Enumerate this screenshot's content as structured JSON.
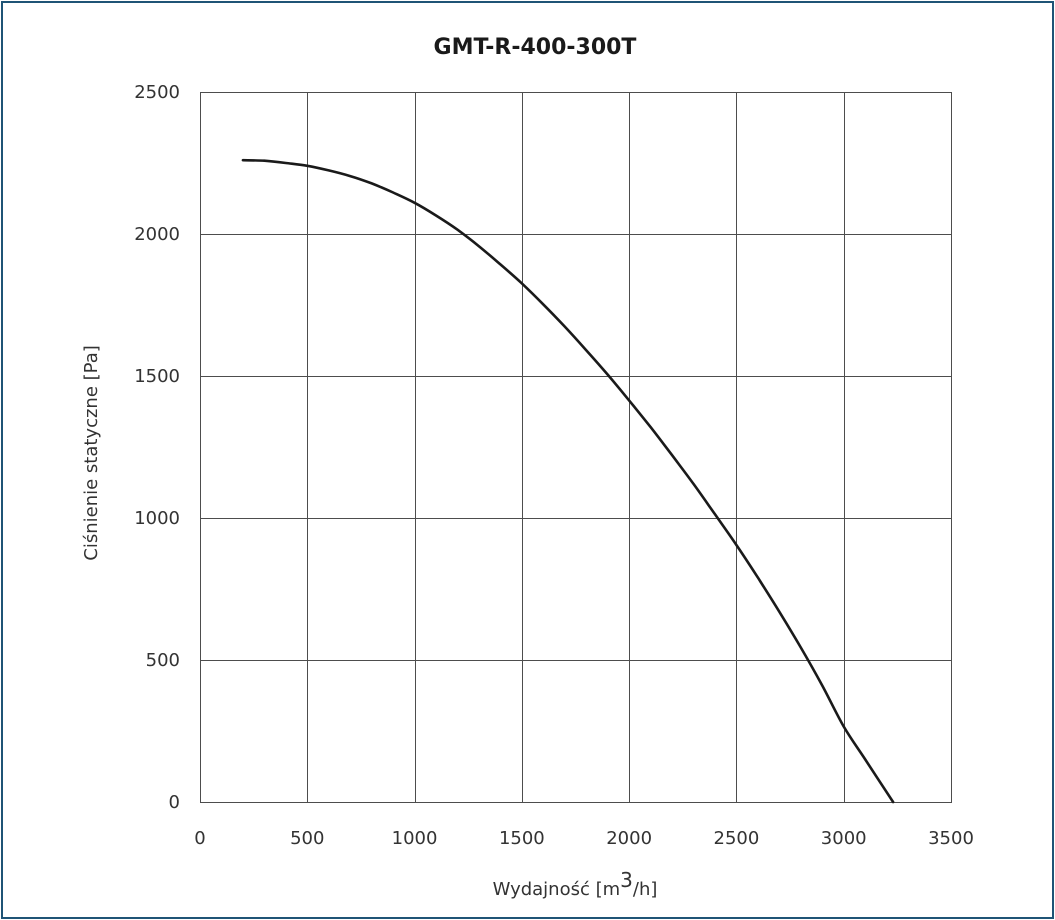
{
  "chart_data": {
    "type": "line",
    "title": "GMT-R-400-300T",
    "xlabel": {
      "prefix": "Wydajność [m",
      "superscript": "3",
      "suffix": "/h]"
    },
    "ylabel": "Ciśnienie statyczne [Pa]",
    "xlim": [
      0,
      3500
    ],
    "ylim": [
      0,
      2500
    ],
    "x_ticks": [
      0,
      500,
      1000,
      1500,
      2000,
      2500,
      3000,
      3500
    ],
    "y_ticks": [
      0,
      500,
      1000,
      1500,
      2000,
      2500
    ],
    "grid": true,
    "series": [
      {
        "line_color": "#1a1a1a",
        "points": [
          [
            200,
            2260
          ],
          [
            300,
            2258
          ],
          [
            400,
            2250
          ],
          [
            500,
            2240
          ],
          [
            600,
            2224
          ],
          [
            700,
            2204
          ],
          [
            800,
            2178
          ],
          [
            900,
            2146
          ],
          [
            1000,
            2110
          ],
          [
            1100,
            2065
          ],
          [
            1200,
            2015
          ],
          [
            1300,
            1957
          ],
          [
            1400,
            1893
          ],
          [
            1500,
            1826
          ],
          [
            1600,
            1752
          ],
          [
            1700,
            1674
          ],
          [
            1800,
            1591
          ],
          [
            1900,
            1505
          ],
          [
            2000,
            1414
          ],
          [
            2100,
            1320
          ],
          [
            2200,
            1221
          ],
          [
            2300,
            1120
          ],
          [
            2400,
            1013
          ],
          [
            2500,
            905
          ],
          [
            2600,
            790
          ],
          [
            2700,
            670
          ],
          [
            2800,
            544
          ],
          [
            2900,
            410
          ],
          [
            3000,
            266
          ],
          [
            3100,
            150
          ],
          [
            3230,
            0
          ]
        ]
      }
    ]
  },
  "colors": {
    "frame": "#1f5476",
    "grid": "#4d4d4d",
    "line": "#1a1a1a"
  }
}
